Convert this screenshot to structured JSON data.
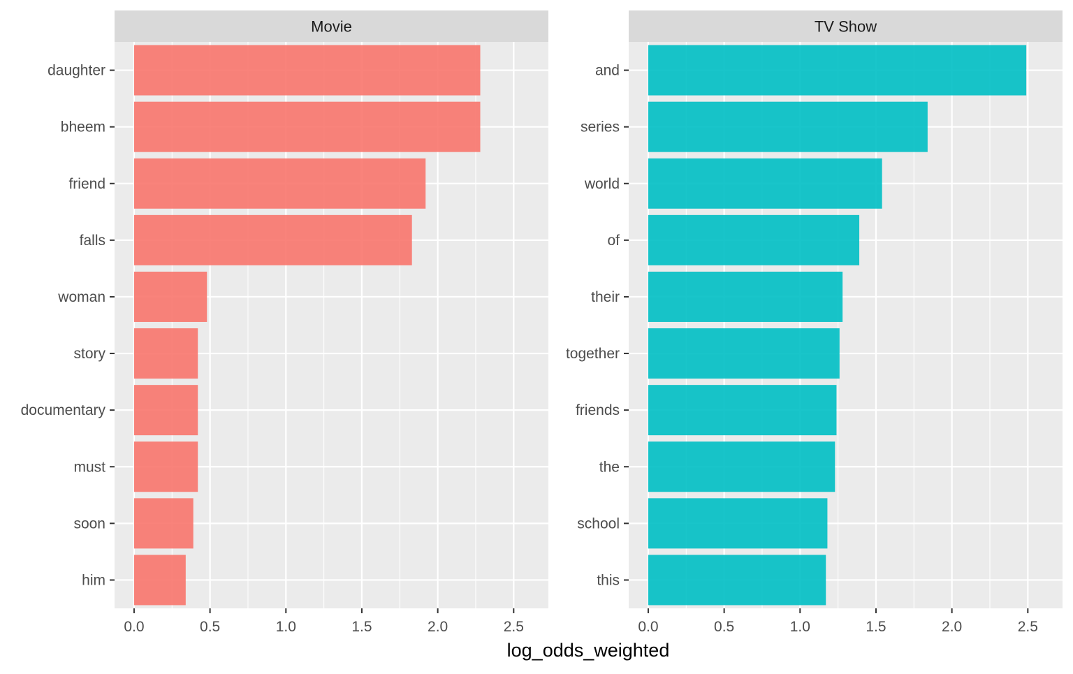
{
  "chart_data": {
    "type": "bar",
    "orientation": "horizontal",
    "xlabel": "log_odds_weighted",
    "ylabel": "",
    "xlim": [
      0,
      2.6
    ],
    "x_ticks": [
      "0.0",
      "0.5",
      "1.0",
      "1.5",
      "2.0",
      "2.5"
    ],
    "grid": true,
    "legend": "none",
    "facets": [
      {
        "title": "Movie",
        "color": "#F8766D",
        "categories": [
          "daughter",
          "bheem",
          "friend",
          "falls",
          "woman",
          "story",
          "documentary",
          "must",
          "soon",
          "him"
        ],
        "values": [
          2.28,
          2.28,
          1.92,
          1.83,
          0.48,
          0.42,
          0.42,
          0.42,
          0.39,
          0.34
        ]
      },
      {
        "title": "TV Show",
        "color": "#00BFC4",
        "categories": [
          "and",
          "series",
          "world",
          "of",
          "their",
          "together",
          "friends",
          "the",
          "school",
          "this"
        ],
        "values": [
          2.49,
          1.84,
          1.54,
          1.39,
          1.28,
          1.26,
          1.24,
          1.23,
          1.18,
          1.17
        ]
      }
    ]
  }
}
